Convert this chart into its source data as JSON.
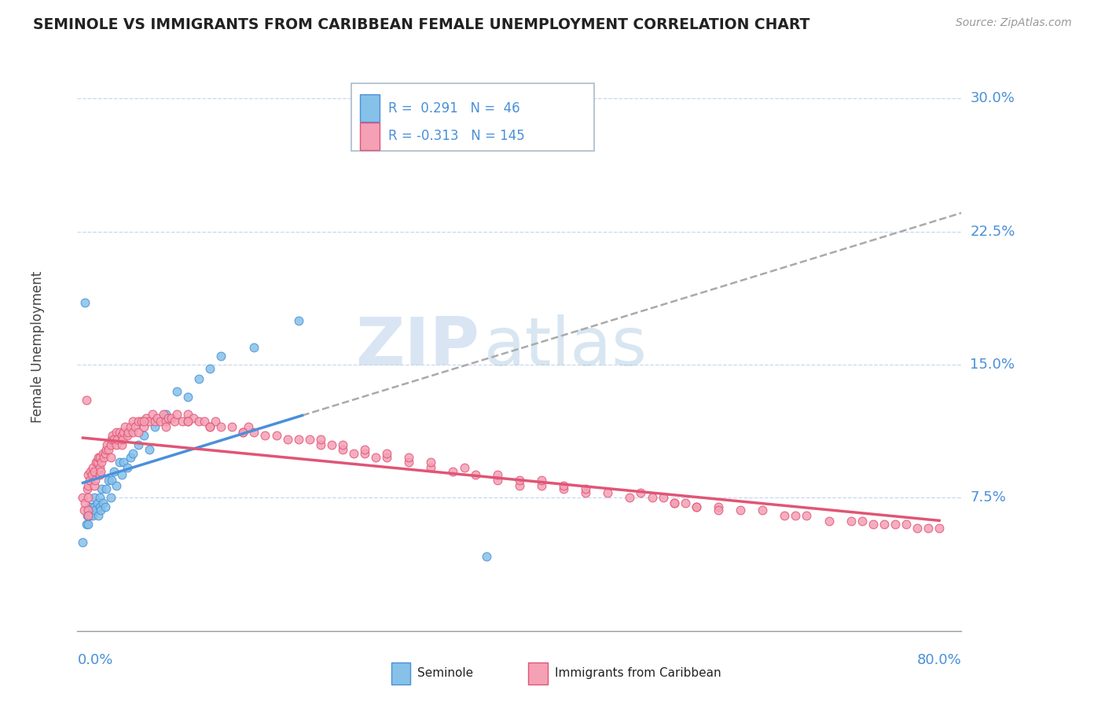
{
  "title": "SEMINOLE VS IMMIGRANTS FROM CARIBBEAN FEMALE UNEMPLOYMENT CORRELATION CHART",
  "source": "Source: ZipAtlas.com",
  "ylabel": "Female Unemployment",
  "ytick_labels": [
    "7.5%",
    "15.0%",
    "22.5%",
    "30.0%"
  ],
  "ytick_values": [
    0.075,
    0.15,
    0.225,
    0.3
  ],
  "xlim": [
    0.0,
    0.8
  ],
  "ylim": [
    0.0,
    0.32
  ],
  "color_seminole_fill": "#85c1e8",
  "color_seminole_edge": "#4a90d9",
  "color_caribbean_fill": "#f4a0b5",
  "color_caribbean_edge": "#e05575",
  "color_title": "#222222",
  "color_axis": "#4a90d9",
  "color_grid": "#c8d8ee",
  "color_dashed": "#aaaaaa",
  "background_color": "#ffffff",
  "seminole_x": [
    0.005,
    0.007,
    0.008,
    0.009,
    0.01,
    0.01,
    0.011,
    0.012,
    0.013,
    0.014,
    0.015,
    0.015,
    0.016,
    0.018,
    0.019,
    0.02,
    0.02,
    0.021,
    0.022,
    0.023,
    0.025,
    0.026,
    0.028,
    0.03,
    0.031,
    0.033,
    0.035,
    0.038,
    0.04,
    0.042,
    0.045,
    0.048,
    0.05,
    0.055,
    0.06,
    0.065,
    0.07,
    0.08,
    0.09,
    0.1,
    0.11,
    0.12,
    0.13,
    0.16,
    0.2,
    0.37
  ],
  "seminole_y": [
    0.05,
    0.185,
    0.06,
    0.065,
    0.065,
    0.06,
    0.07,
    0.065,
    0.07,
    0.065,
    0.07,
    0.075,
    0.068,
    0.072,
    0.065,
    0.07,
    0.075,
    0.068,
    0.08,
    0.072,
    0.07,
    0.08,
    0.085,
    0.075,
    0.085,
    0.09,
    0.082,
    0.095,
    0.088,
    0.095,
    0.092,
    0.098,
    0.1,
    0.105,
    0.11,
    0.102,
    0.115,
    0.122,
    0.135,
    0.132,
    0.142,
    0.148,
    0.155,
    0.16,
    0.175,
    0.042
  ],
  "caribbean_x": [
    0.005,
    0.006,
    0.007,
    0.008,
    0.009,
    0.01,
    0.01,
    0.01,
    0.01,
    0.01,
    0.011,
    0.012,
    0.013,
    0.014,
    0.015,
    0.015,
    0.016,
    0.017,
    0.018,
    0.019,
    0.02,
    0.02,
    0.02,
    0.021,
    0.022,
    0.023,
    0.024,
    0.025,
    0.026,
    0.027,
    0.028,
    0.03,
    0.03,
    0.031,
    0.032,
    0.033,
    0.035,
    0.035,
    0.036,
    0.038,
    0.04,
    0.04,
    0.041,
    0.042,
    0.043,
    0.045,
    0.046,
    0.048,
    0.05,
    0.05,
    0.052,
    0.055,
    0.055,
    0.058,
    0.06,
    0.062,
    0.065,
    0.068,
    0.07,
    0.072,
    0.075,
    0.078,
    0.08,
    0.082,
    0.085,
    0.088,
    0.09,
    0.095,
    0.1,
    0.1,
    0.105,
    0.11,
    0.115,
    0.12,
    0.125,
    0.13,
    0.14,
    0.15,
    0.155,
    0.16,
    0.17,
    0.18,
    0.19,
    0.2,
    0.21,
    0.22,
    0.23,
    0.24,
    0.25,
    0.26,
    0.27,
    0.28,
    0.3,
    0.32,
    0.34,
    0.36,
    0.38,
    0.4,
    0.42,
    0.44,
    0.46,
    0.48,
    0.5,
    0.52,
    0.54,
    0.55,
    0.56,
    0.58,
    0.6,
    0.62,
    0.64,
    0.65,
    0.66,
    0.68,
    0.7,
    0.71,
    0.72,
    0.73,
    0.74,
    0.75,
    0.76,
    0.77,
    0.78,
    0.3,
    0.32,
    0.35,
    0.28,
    0.26,
    0.24,
    0.22,
    0.51,
    0.53,
    0.54,
    0.56,
    0.58,
    0.42,
    0.44,
    0.46,
    0.38,
    0.4,
    0.15,
    0.12,
    0.1,
    0.08,
    0.06
  ],
  "caribbean_y": [
    0.075,
    0.068,
    0.072,
    0.13,
    0.08,
    0.068,
    0.075,
    0.082,
    0.088,
    0.065,
    0.085,
    0.09,
    0.088,
    0.092,
    0.082,
    0.09,
    0.085,
    0.095,
    0.095,
    0.098,
    0.088,
    0.092,
    0.098,
    0.09,
    0.095,
    0.1,
    0.098,
    0.1,
    0.102,
    0.105,
    0.102,
    0.098,
    0.105,
    0.108,
    0.11,
    0.108,
    0.112,
    0.105,
    0.108,
    0.112,
    0.105,
    0.11,
    0.108,
    0.112,
    0.115,
    0.11,
    0.112,
    0.115,
    0.112,
    0.118,
    0.115,
    0.118,
    0.112,
    0.118,
    0.115,
    0.12,
    0.118,
    0.122,
    0.118,
    0.12,
    0.118,
    0.122,
    0.118,
    0.12,
    0.12,
    0.118,
    0.122,
    0.118,
    0.122,
    0.118,
    0.12,
    0.118,
    0.118,
    0.115,
    0.118,
    0.115,
    0.115,
    0.112,
    0.115,
    0.112,
    0.11,
    0.11,
    0.108,
    0.108,
    0.108,
    0.105,
    0.105,
    0.102,
    0.1,
    0.1,
    0.098,
    0.098,
    0.095,
    0.092,
    0.09,
    0.088,
    0.085,
    0.082,
    0.082,
    0.08,
    0.078,
    0.078,
    0.075,
    0.075,
    0.072,
    0.072,
    0.07,
    0.07,
    0.068,
    0.068,
    0.065,
    0.065,
    0.065,
    0.062,
    0.062,
    0.062,
    0.06,
    0.06,
    0.06,
    0.06,
    0.058,
    0.058,
    0.058,
    0.098,
    0.095,
    0.092,
    0.1,
    0.102,
    0.105,
    0.108,
    0.078,
    0.075,
    0.072,
    0.07,
    0.068,
    0.085,
    0.082,
    0.08,
    0.088,
    0.085,
    0.112,
    0.115,
    0.118,
    0.115,
    0.118
  ]
}
